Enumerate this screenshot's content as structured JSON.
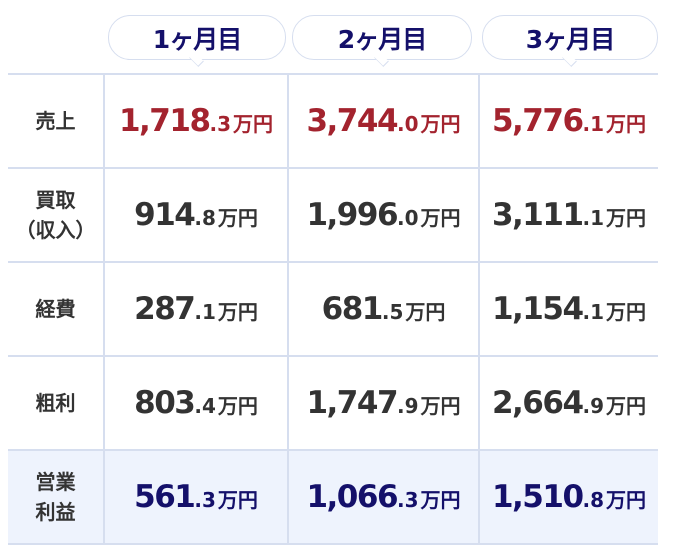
{
  "header": {
    "months": [
      "1ヶ月目",
      "2ヶ月目",
      "3ヶ月目"
    ]
  },
  "colors": {
    "sales": "#a3232e",
    "profit": "#14106a",
    "text": "#333333",
    "border": "#d6deef",
    "profit_bg": "#eef3fd"
  },
  "rows": [
    {
      "label": "売上",
      "cells": [
        {
          "int": "1,718",
          "dec": ".3",
          "unit": "万円"
        },
        {
          "int": "3,744",
          "dec": ".0",
          "unit": "万円"
        },
        {
          "int": "5,776",
          "dec": ".1",
          "unit": "万円"
        }
      ]
    },
    {
      "label": "買取\n（収入）",
      "cells": [
        {
          "int": "914",
          "dec": ".8",
          "unit": "万円"
        },
        {
          "int": "1,996",
          "dec": ".0",
          "unit": "万円"
        },
        {
          "int": "3,111",
          "dec": ".1",
          "unit": "万円"
        }
      ]
    },
    {
      "label": "経費",
      "cells": [
        {
          "int": "287",
          "dec": ".1",
          "unit": "万円"
        },
        {
          "int": "681",
          "dec": ".5",
          "unit": "万円"
        },
        {
          "int": "1,154",
          "dec": ".1",
          "unit": "万円"
        }
      ]
    },
    {
      "label": "粗利",
      "cells": [
        {
          "int": "803",
          "dec": ".4",
          "unit": "万円"
        },
        {
          "int": "1,747",
          "dec": ".9",
          "unit": "万円"
        },
        {
          "int": "2,664",
          "dec": ".9",
          "unit": "万円"
        }
      ]
    },
    {
      "label": "営業\n利益",
      "cells": [
        {
          "int": "561",
          "dec": ".3",
          "unit": "万円"
        },
        {
          "int": "1,066",
          "dec": ".3",
          "unit": "万円"
        },
        {
          "int": "1,510",
          "dec": ".8",
          "unit": "万円"
        }
      ]
    }
  ]
}
